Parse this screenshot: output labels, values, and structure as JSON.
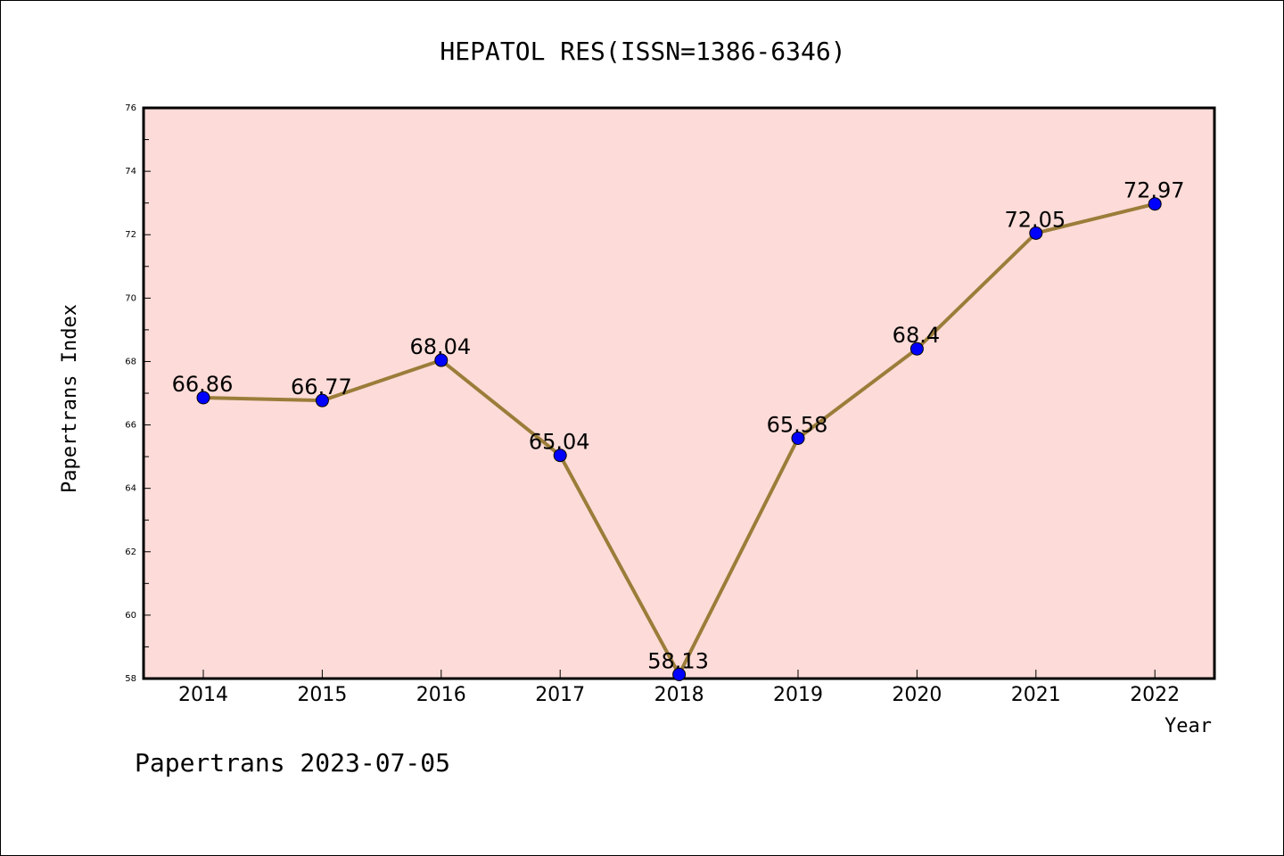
{
  "chart_data": {
    "type": "line",
    "title": "HEPATOL RES(ISSN=1386-6346)",
    "xlabel": "Year",
    "ylabel": "Papertrans Index",
    "footer": "Papertrans 2023-07-05",
    "categories": [
      "2014",
      "2015",
      "2016",
      "2017",
      "2018",
      "2019",
      "2020",
      "2021",
      "2022"
    ],
    "series": [
      {
        "values": [
          66.86,
          66.77,
          68.04,
          65.04,
          58.13,
          65.58,
          68.4,
          72.05,
          72.97
        ],
        "labels": [
          "66.86",
          "66.77",
          "68.04",
          "65.04",
          "58.13",
          "65.58",
          "68.4",
          "72.05",
          "72.97"
        ]
      }
    ],
    "ylim": [
      58,
      76
    ],
    "yticks": [
      "58",
      "60",
      "62",
      "64",
      "66",
      "68",
      "70",
      "72",
      "74",
      "76"
    ],
    "grid": false,
    "legend": "none",
    "colors": {
      "plot_background": "#fddbd8",
      "line": "#9b7d3a",
      "marker": "#0000ff"
    }
  }
}
